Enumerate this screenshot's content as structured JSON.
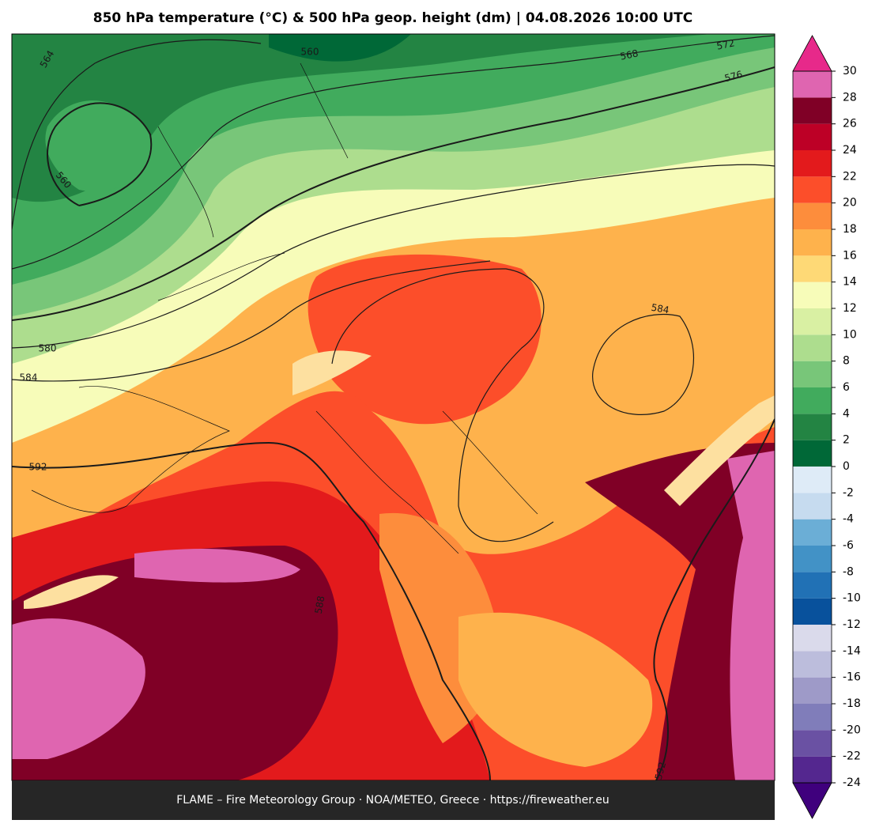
{
  "title": "850 hPa temperature (°C) & 500 hPa geop. height (dm)  |  04.08.2026 10:00 UTC",
  "footer": "FLAME – Fire Meteorology Group · NOA/METEO, Greece · https://fireweather.eu",
  "contour_labels": [
    564,
    560,
    560,
    568,
    572,
    576,
    580,
    584,
    584,
    592,
    592,
    588
  ],
  "colorbar": {
    "lim": [
      -24,
      30
    ],
    "ticks": [
      -24,
      -22,
      -20,
      -18,
      -16,
      -14,
      -12,
      -10,
      -8,
      -6,
      -4,
      -2,
      0,
      2,
      4,
      6,
      8,
      10,
      12,
      14,
      16,
      18,
      20,
      22,
      24,
      26,
      28,
      30
    ],
    "colors": [
      "#54278f",
      "#6a51a3",
      "#807dba",
      "#9e9ac8",
      "#bcbddc",
      "#dadaeb",
      "#08519c",
      "#2171b5",
      "#4292c6",
      "#6baed6",
      "#c6dbef",
      "#deebf7",
      "#006837",
      "#238443",
      "#41ab5d",
      "#78c679",
      "#addd8e",
      "#d9f0a3",
      "#f7fcb9",
      "#fed976",
      "#feb24c",
      "#fd8d3c",
      "#fc4e2a",
      "#e31a1c",
      "#bd0026",
      "#800026",
      "#df65b0"
    ],
    "under_color": "#3f007d",
    "over_color": "#e7298a"
  }
}
